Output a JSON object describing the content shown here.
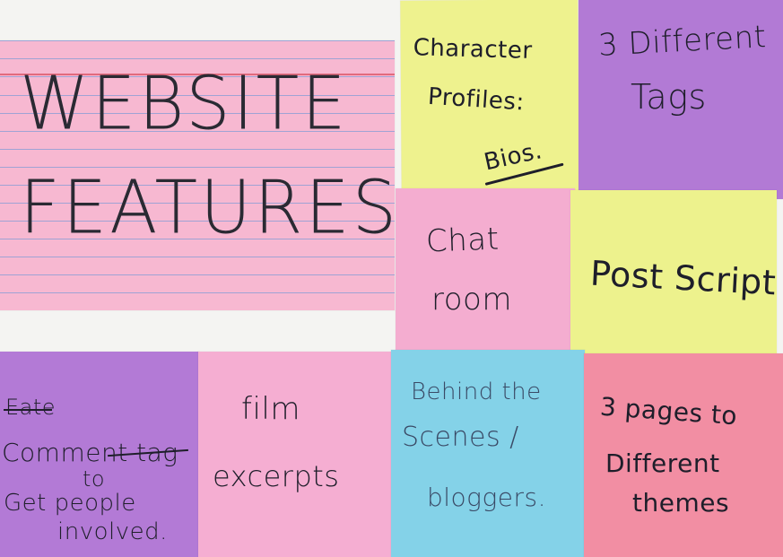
{
  "board": {
    "title_card": {
      "line1": "WEBSITE",
      "line2": "FEATURES"
    },
    "notes": {
      "character_profiles": {
        "line1": "Character",
        "line2": "Profiles:",
        "line3": "Bios."
      },
      "tags": {
        "line1": "3 Different",
        "line2": "Tags"
      },
      "chat_room": {
        "line1": "Chat",
        "line2": "room"
      },
      "post_script": {
        "line1": "Post Script"
      },
      "comment_tag": {
        "struck": "Eate",
        "line1": "Comment tag",
        "line2": "to",
        "line3": "Get people",
        "line4": "involved."
      },
      "film_excerpts": {
        "line1": "film",
        "line2": "excerpts"
      },
      "behind_scenes": {
        "line1": "Behind the",
        "line2": "Scenes /",
        "line3": "bloggers."
      },
      "three_pages": {
        "line1": "3 pages to",
        "line2": "Different",
        "line3": "themes"
      }
    },
    "colors": {
      "index_card": "#f7b8d1",
      "yellow": "#eef28e",
      "purple": "#b27ad5",
      "pink": "#f4add0",
      "cyan": "#84d2e8",
      "salmon": "#f28ea3",
      "ink": "#1e1e2a"
    }
  }
}
